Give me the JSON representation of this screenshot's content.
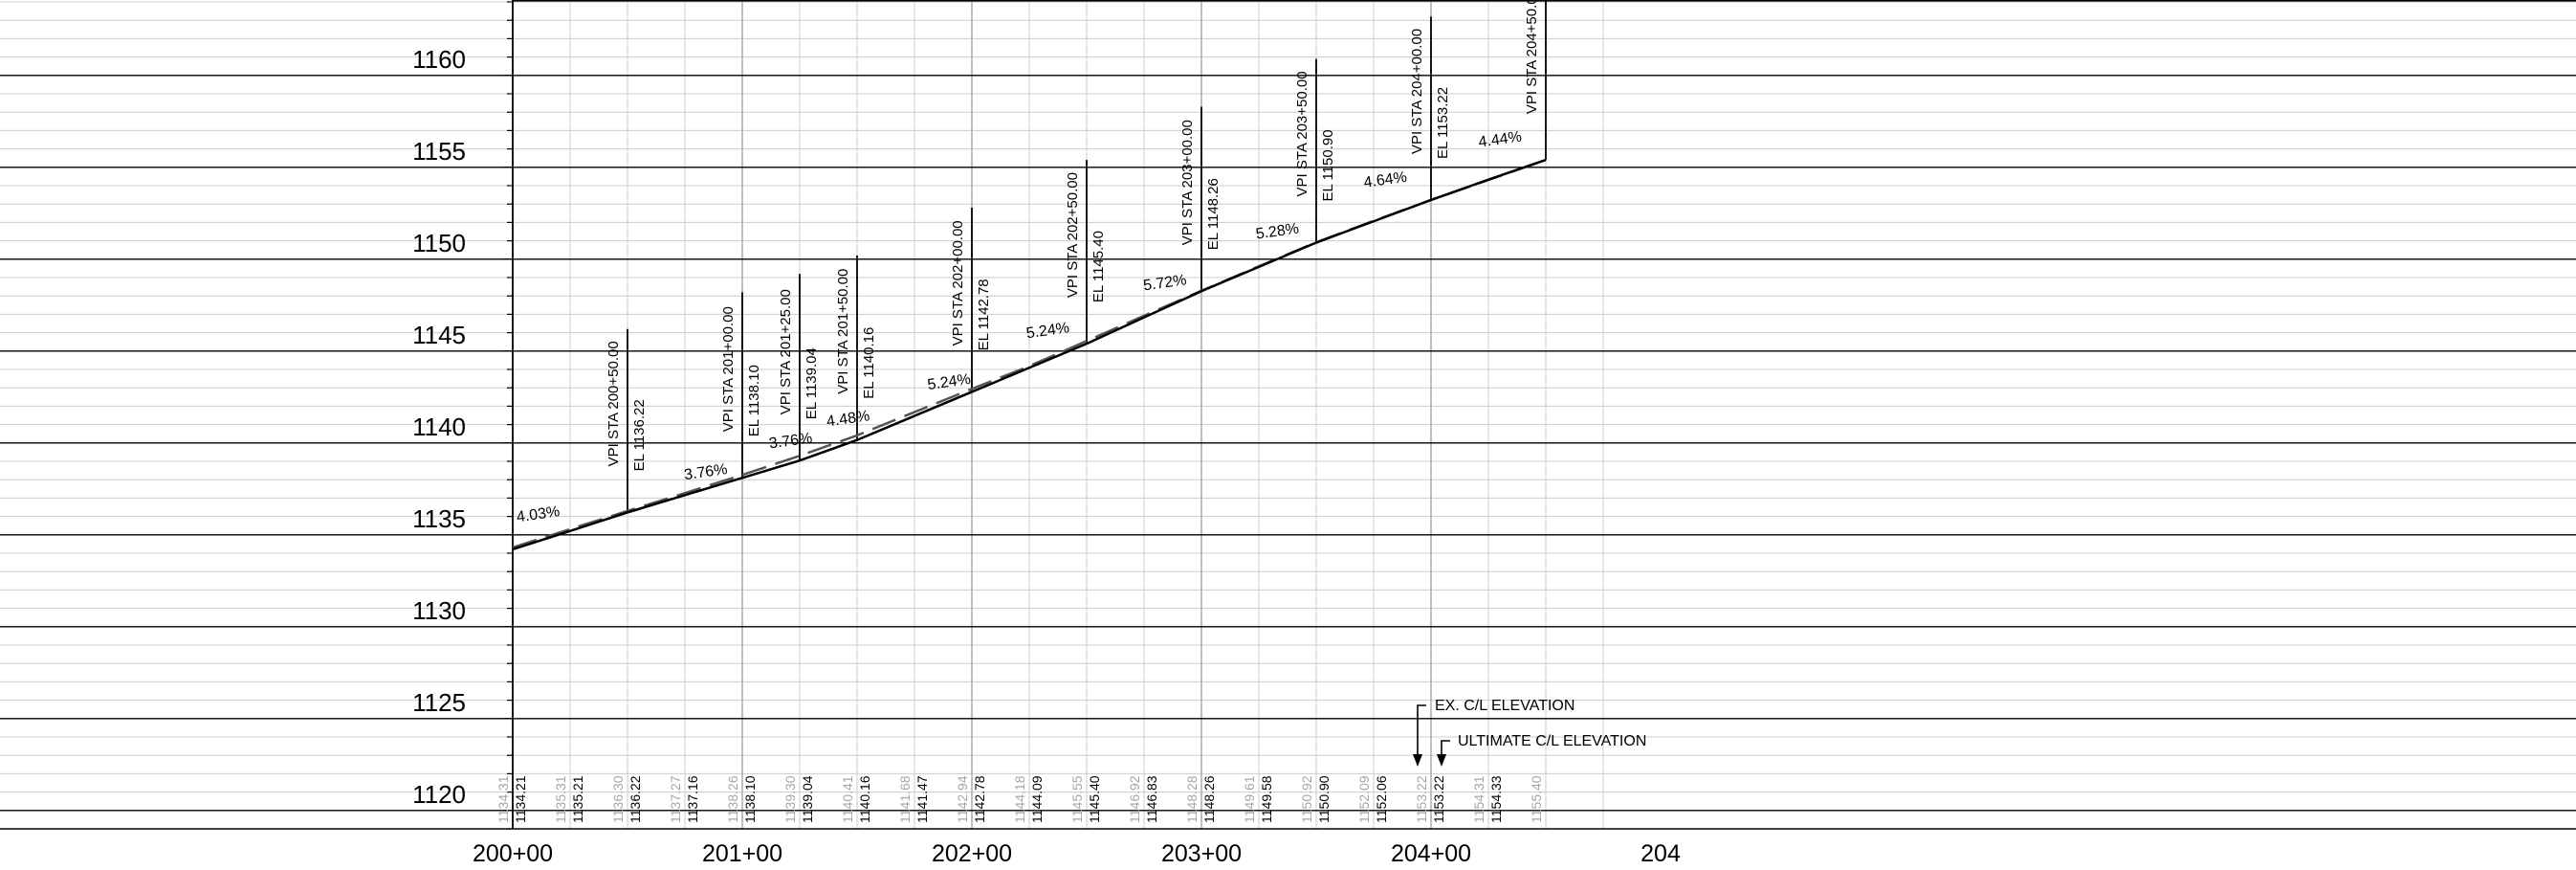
{
  "elevation_labels": [
    "1160",
    "1155",
    "1150",
    "1145",
    "1140",
    "1135",
    "1130",
    "1125",
    "1120"
  ],
  "station_labels": [
    "200+00",
    "201+00",
    "202+00",
    "203+00",
    "204+00",
    "204"
  ],
  "grades": [
    {
      "text": "4.03%",
      "sta": 20002,
      "elev": 1135.7
    },
    {
      "text": "3.76%",
      "sta": 20075,
      "elev": 1138.0
    },
    {
      "text": "3.76%",
      "sta": 20112,
      "elev": 1139.7
    },
    {
      "text": "4.48%",
      "sta": 20137,
      "elev": 1140.9
    },
    {
      "text": "5.24%",
      "sta": 20181,
      "elev": 1142.9
    },
    {
      "text": "5.24%",
      "sta": 20224,
      "elev": 1145.7
    },
    {
      "text": "5.72%",
      "sta": 20275,
      "elev": 1148.3
    },
    {
      "text": "5.28%",
      "sta": 20324,
      "elev": 1151.1
    },
    {
      "text": "4.64%",
      "sta": 20371,
      "elev": 1153.9
    },
    {
      "text": "4.44%",
      "sta": 20421,
      "elev": 1156.1
    }
  ],
  "vpis": [
    {
      "sta_text": "VPI STA 200+50.00",
      "el_text": "EL 1136.22",
      "sta": 20050,
      "elev": 1136.22,
      "top": 1146.2
    },
    {
      "sta_text": "VPI STA 201+00.00",
      "el_text": "EL 1138.10",
      "sta": 20100,
      "elev": 1138.1,
      "top": 1148.2
    },
    {
      "sta_text": "VPI STA 201+25.00",
      "el_text": "EL 1139.04",
      "sta": 20125,
      "elev": 1139.04,
      "top": 1149.2
    },
    {
      "sta_text": "VPI STA 201+50.00",
      "el_text": "EL 1140.16",
      "sta": 20150,
      "elev": 1140.16,
      "top": 1150.2
    },
    {
      "sta_text": "VPI STA 202+00.00",
      "el_text": "EL 1142.78",
      "sta": 20200,
      "elev": 1142.78,
      "top": 1152.8
    },
    {
      "sta_text": "VPI STA 202+50.00",
      "el_text": "EL 1145.40",
      "sta": 20250,
      "elev": 1145.4,
      "top": 1155.4
    },
    {
      "sta_text": "VPI STA 203+00.00",
      "el_text": "EL 1148.26",
      "sta": 20300,
      "elev": 1148.26,
      "top": 1158.3
    },
    {
      "sta_text": "VPI STA 203+50.00",
      "el_text": "EL 1150.90",
      "sta": 20350,
      "elev": 1150.9,
      "top": 1160.9
    },
    {
      "sta_text": "VPI STA 204+00.00",
      "el_text": "EL 1153.22",
      "sta": 20400,
      "elev": 1153.22,
      "top": 1163.2
    },
    {
      "sta_text": "VPI STA 204+50.0",
      "el_text": "",
      "sta": 20450,
      "elev": 1155.4,
      "top": 1165.5
    }
  ],
  "existing_elevations": [
    "1134.31",
    "1135.31",
    "1136.30",
    "1137.27",
    "1138.26",
    "1139.30",
    "1140.41",
    "1141.68",
    "1142.94",
    "1144.18",
    "1145.55",
    "1146.92",
    "1148.28",
    "1149.61",
    "1150.92",
    "1152.09",
    "1153.22",
    "1154.31",
    "1155.40"
  ],
  "ultimate_elevations": [
    "1134.21",
    "1135.21",
    "1136.22",
    "1137.16",
    "1138.10",
    "1139.04",
    "1140.16",
    "1141.47",
    "1142.78",
    "1144.09",
    "1145.40",
    "1146.83",
    "1148.26",
    "1149.58",
    "1150.90",
    "1152.06",
    "1153.22",
    "1154.33",
    ""
  ],
  "existing_profile_elevations": [
    1134.31,
    1135.31,
    1136.3,
    1137.27,
    1138.26,
    1139.3,
    1140.41,
    1141.68,
    1142.94,
    1144.18,
    1145.55,
    1146.92,
    1148.28,
    1149.61,
    1150.92,
    1152.09,
    1153.22,
    1154.31,
    1155.4
  ],
  "ultimate_profile_elevations": [
    1134.21,
    1135.21,
    1136.22,
    1137.16,
    1138.1,
    1139.04,
    1140.16,
    1141.47,
    1142.78,
    1144.09,
    1145.4,
    1146.83,
    1148.26,
    1149.58,
    1150.9,
    1152.06,
    1153.22,
    1154.33,
    1155.4
  ],
  "annotations": {
    "existing": "EX. C/L ELEVATION",
    "ultimate": "ULTIMATE C/L ELEVATION"
  },
  "colors": {
    "major_grid": "#000000",
    "minor_grid": "#cccccc",
    "vertical_grid": "#cccccc",
    "profile_existing": "#555555",
    "profile_ultimate": "#000000",
    "existing_text": "#a6a6a6",
    "ultimate_text": "#000000"
  }
}
